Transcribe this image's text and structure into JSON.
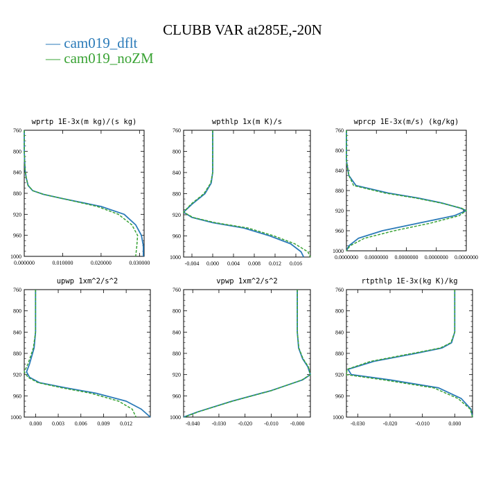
{
  "title": "CLUBB VAR at285E,-20N",
  "legend": [
    {
      "label": "— cam019_dflt",
      "color": "#2a7ab8"
    },
    {
      "label": "— cam019_noZM",
      "color": "#3aa335"
    }
  ],
  "chart_data": [
    {
      "type": "line",
      "title": "wprtp  1E-3x(m kg)/(s kg)",
      "xlim": [
        0.0,
        0.0312
      ],
      "ylim": [
        760,
        1000
      ],
      "y_inverted": true,
      "xticks": [
        "0.000000",
        "0.010000",
        "0.020000",
        "0.030000"
      ],
      "xtick_values": [
        0.0,
        0.01,
        0.02,
        0.03
      ],
      "yticks": [
        "760",
        "800",
        "840",
        "880",
        "920",
        "960",
        "1000"
      ],
      "series": [
        {
          "name": "cam019_dflt",
          "x": [
            0.0,
            0.0,
            0.0002,
            0.0005,
            0.001,
            0.0022,
            0.005,
            0.01,
            0.02,
            0.026,
            0.029,
            0.0305,
            0.031,
            0.031
          ],
          "y": [
            760,
            800,
            835,
            850,
            865,
            875,
            882,
            890,
            905,
            920,
            940,
            960,
            980,
            1000
          ]
        },
        {
          "name": "cam019_noZM",
          "x": [
            0.0,
            0.0,
            0.0002,
            0.0005,
            0.001,
            0.0022,
            0.005,
            0.01,
            0.019,
            0.0245,
            0.028,
            0.0295,
            0.0293,
            0.029
          ],
          "y": [
            760,
            800,
            835,
            850,
            865,
            875,
            882,
            890,
            905,
            920,
            940,
            960,
            980,
            1000
          ]
        }
      ]
    },
    {
      "type": "line",
      "title": "wpthlp  1x(m K)/s",
      "xlim": [
        -0.0056,
        0.0188
      ],
      "ylim": [
        760,
        1000
      ],
      "y_inverted": true,
      "xticks": [
        "-0.004",
        "0.000",
        "0.004",
        "0.008",
        "0.012",
        "0.016"
      ],
      "xtick_values": [
        -0.004,
        0.0,
        0.004,
        0.008,
        0.012,
        0.016
      ],
      "yticks": [
        "760",
        "800",
        "840",
        "880",
        "920",
        "960",
        "1000"
      ],
      "series": [
        {
          "name": "cam019_dflt",
          "x": [
            0.0,
            0.0,
            -0.0003,
            -0.0015,
            -0.004,
            -0.0056,
            -0.004,
            0.0,
            0.006,
            0.011,
            0.015,
            0.017,
            0.0175
          ],
          "y": [
            760,
            840,
            860,
            880,
            900,
            915,
            925,
            935,
            945,
            960,
            975,
            990,
            1000
          ]
        },
        {
          "name": "cam019_noZM",
          "x": [
            0.0,
            0.0,
            -0.0004,
            -0.0017,
            -0.0042,
            -0.0056,
            -0.0038,
            0.0005,
            0.0068,
            0.0118,
            0.0158,
            0.0183,
            0.0188
          ],
          "y": [
            760,
            840,
            860,
            880,
            900,
            915,
            925,
            935,
            945,
            960,
            975,
            990,
            1000
          ]
        }
      ]
    },
    {
      "type": "line",
      "title": "wprcp  1E-3x(m/s) (kg/kg)",
      "xlim": [
        0.0,
        1.0
      ],
      "ylim": [
        760,
        1000
      ],
      "y_inverted": true,
      "xticks": [
        "0.0000000",
        "0.0000000",
        "0.0000000",
        "0.0000000",
        "0.0000000"
      ],
      "xtick_values": [
        0.0,
        0.25,
        0.5,
        0.75,
        1.0
      ],
      "yticks": [
        "760",
        "800",
        "840",
        "880",
        "920",
        "960",
        "1000"
      ],
      "series": [
        {
          "name": "cam019_dflt",
          "x": [
            0.0,
            0.0,
            0.02,
            0.08,
            0.35,
            0.6,
            0.8,
            0.95,
            1.0,
            0.9,
            0.6,
            0.3,
            0.1,
            0.02,
            0.0
          ],
          "y": [
            760,
            820,
            850,
            870,
            885,
            895,
            905,
            915,
            920,
            930,
            945,
            960,
            975,
            990,
            1000
          ]
        },
        {
          "name": "cam019_noZM",
          "x": [
            0.0,
            0.0,
            0.02,
            0.06,
            0.32,
            0.58,
            0.79,
            0.96,
            1.0,
            0.94,
            0.7,
            0.4,
            0.15,
            0.03,
            0.0
          ],
          "y": [
            760,
            820,
            850,
            870,
            885,
            895,
            905,
            915,
            920,
            930,
            945,
            960,
            975,
            990,
            1000
          ]
        }
      ]
    },
    {
      "type": "line",
      "title": "upwp  1xm^2/s^2",
      "xlim": [
        -0.0015,
        0.0152
      ],
      "ylim": [
        760,
        1000
      ],
      "y_inverted": true,
      "xticks": [
        "0.000",
        "0.003",
        "0.006",
        "0.009",
        "0.012"
      ],
      "xtick_values": [
        0.0,
        0.003,
        0.006,
        0.009,
        0.012
      ],
      "yticks": [
        "760",
        "800",
        "840",
        "880",
        "920",
        "960",
        "1000"
      ],
      "series": [
        {
          "name": "cam019_dflt",
          "x": [
            0.0,
            0.0,
            -0.0002,
            -0.0008,
            -0.0012,
            -0.0008,
            0.0005,
            0.004,
            0.008,
            0.012,
            0.014,
            0.0152
          ],
          "y": [
            760,
            840,
            870,
            900,
            915,
            925,
            935,
            945,
            955,
            970,
            985,
            1000
          ]
        },
        {
          "name": "cam019_noZM",
          "x": [
            0.0,
            0.0,
            -0.0003,
            -0.001,
            -0.0015,
            -0.001,
            0.0003,
            0.0035,
            0.0073,
            0.011,
            0.0128,
            0.0133
          ],
          "y": [
            760,
            840,
            870,
            900,
            915,
            925,
            935,
            945,
            955,
            970,
            985,
            1000
          ]
        }
      ]
    },
    {
      "type": "line",
      "title": "vpwp  1xm^2/s^2",
      "xlim": [
        -0.0435,
        0.005
      ],
      "ylim": [
        760,
        1000
      ],
      "y_inverted": true,
      "xticks": [
        "-0.040",
        "-0.030",
        "-0.020",
        "-0.010",
        "-0.000"
      ],
      "xtick_values": [
        -0.04,
        -0.03,
        -0.02,
        -0.01,
        0.0
      ],
      "yticks": [
        "760",
        "800",
        "840",
        "880",
        "920",
        "960",
        "1000"
      ],
      "series": [
        {
          "name": "cam019_dflt",
          "x": [
            0.0,
            0.0,
            0.0005,
            0.002,
            0.004,
            0.005,
            0.002,
            -0.01,
            -0.025,
            -0.038,
            -0.0435
          ],
          "y": [
            760,
            840,
            870,
            890,
            905,
            920,
            930,
            950,
            970,
            990,
            1000
          ]
        },
        {
          "name": "cam019_noZM",
          "x": [
            0.0,
            0.0,
            0.0006,
            0.0022,
            0.0042,
            0.005,
            0.0018,
            -0.0098,
            -0.0248,
            -0.0378,
            -0.0432
          ],
          "y": [
            760,
            840,
            870,
            890,
            905,
            920,
            930,
            950,
            970,
            990,
            1000
          ]
        }
      ]
    },
    {
      "type": "line",
      "title": "rtpthlp  1E-3x(kg K)/kg",
      "xlim": [
        -0.0335,
        0.0055
      ],
      "ylim": [
        760,
        1000
      ],
      "y_inverted": true,
      "xticks": [
        "-0.030",
        "-0.020",
        "-0.010",
        "0.000"
      ],
      "xtick_values": [
        -0.03,
        -0.02,
        -0.01,
        0.0
      ],
      "yticks": [
        "760",
        "800",
        "840",
        "880",
        "920",
        "960",
        "1000"
      ],
      "series": [
        {
          "name": "cam019_dflt",
          "x": [
            0.0,
            0.0,
            -0.001,
            -0.004,
            -0.012,
            -0.025,
            -0.033,
            -0.032,
            -0.02,
            -0.005,
            0.002,
            0.005,
            0.0055
          ],
          "y": [
            760,
            840,
            860,
            870,
            880,
            895,
            910,
            920,
            930,
            945,
            965,
            985,
            1000
          ]
        },
        {
          "name": "cam019_noZM",
          "x": [
            0.0,
            0.0,
            -0.0012,
            -0.0045,
            -0.013,
            -0.026,
            -0.0333,
            -0.0335,
            -0.022,
            -0.0065,
            0.001,
            0.0048,
            0.0055
          ],
          "y": [
            760,
            840,
            860,
            870,
            880,
            895,
            910,
            920,
            930,
            945,
            965,
            985,
            1000
          ]
        }
      ]
    }
  ]
}
